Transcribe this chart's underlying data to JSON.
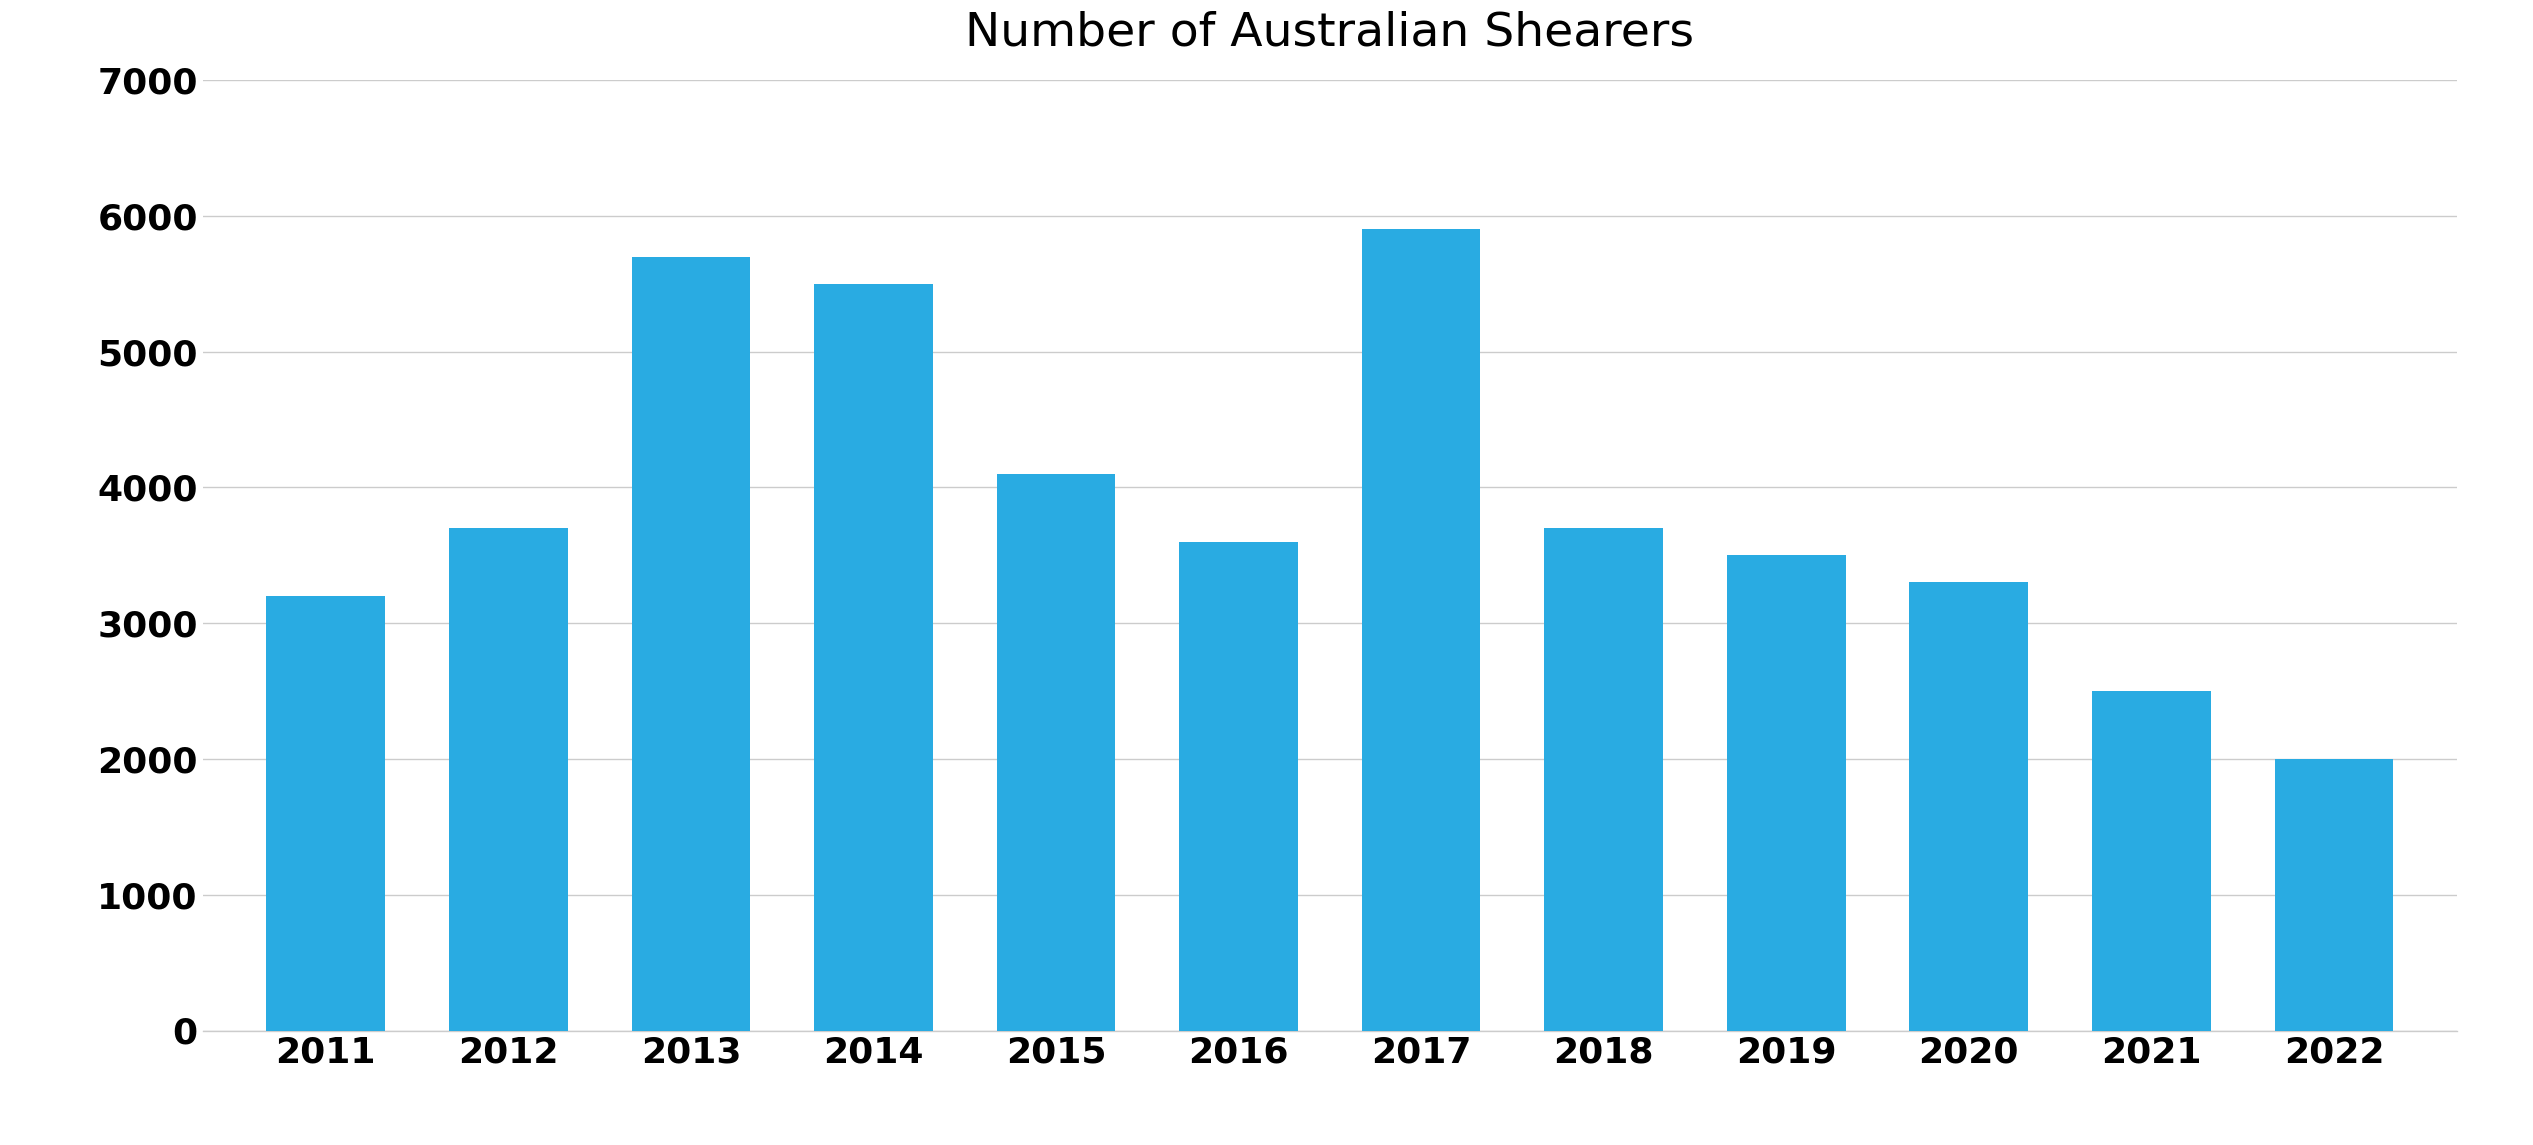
{
  "title": "Number of Australian Shearers",
  "years": [
    2011,
    2012,
    2013,
    2014,
    2015,
    2016,
    2017,
    2018,
    2019,
    2020,
    2021,
    2022
  ],
  "values": [
    3200,
    3700,
    5700,
    5500,
    4100,
    3600,
    5900,
    3700,
    3500,
    3300,
    2500,
    2000
  ],
  "bar_color": "#29ABE2",
  "background_color": "#ffffff",
  "ylim": [
    0,
    7000
  ],
  "yticks": [
    0,
    1000,
    2000,
    3000,
    4000,
    5000,
    6000,
    7000
  ],
  "grid_color": "#cccccc",
  "title_fontsize": 34,
  "tick_fontsize": 26,
  "bar_width": 0.65
}
